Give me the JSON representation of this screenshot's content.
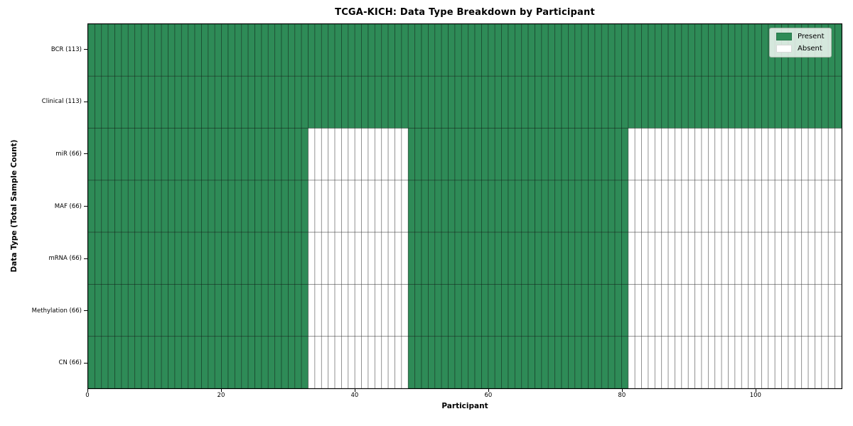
{
  "chart_data": {
    "type": "heatmap",
    "title": "TCGA-KICH: Data Type Breakdown by Participant",
    "xlabel": "Participant",
    "ylabel": "Data Type (Total Sample Count)",
    "x_ticks": [
      0,
      20,
      40,
      60,
      80,
      100
    ],
    "xlim": [
      0,
      113
    ],
    "n_participants": 113,
    "grid": false,
    "legend_position": "upper right",
    "rows": [
      {
        "label": "BCR (113)",
        "total_samples": 113,
        "present_ranges": [
          [
            0,
            113
          ]
        ]
      },
      {
        "label": "Clinical (113)",
        "total_samples": 113,
        "present_ranges": [
          [
            0,
            113
          ]
        ]
      },
      {
        "label": "miR (66)",
        "total_samples": 66,
        "present_ranges": [
          [
            0,
            33
          ],
          [
            48,
            81
          ]
        ]
      },
      {
        "label": "MAF (66)",
        "total_samples": 66,
        "present_ranges": [
          [
            0,
            33
          ],
          [
            48,
            81
          ]
        ]
      },
      {
        "label": "mRNA (66)",
        "total_samples": 66,
        "present_ranges": [
          [
            0,
            33
          ],
          [
            48,
            81
          ]
        ]
      },
      {
        "label": "Methylation (66)",
        "total_samples": 66,
        "present_ranges": [
          [
            0,
            33
          ],
          [
            48,
            81
          ]
        ]
      },
      {
        "label": "CN (66)",
        "total_samples": 66,
        "present_ranges": [
          [
            0,
            33
          ],
          [
            48,
            81
          ]
        ]
      }
    ],
    "legend": [
      {
        "label": "Present",
        "color": "#2e8b57"
      },
      {
        "label": "Absent",
        "color": "#ffffff"
      }
    ],
    "colors": {
      "present": "#2e8b57",
      "absent": "#ffffff",
      "cell_edge": "rgba(0,0,0,0.4)",
      "axis": "#000000"
    }
  }
}
